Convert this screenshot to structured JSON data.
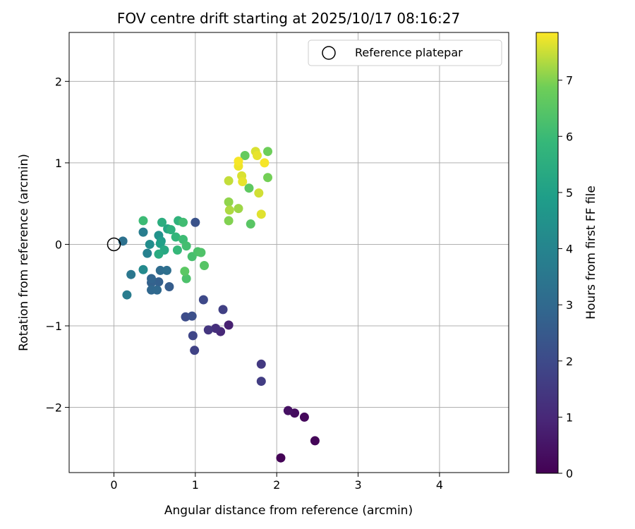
{
  "chart_data": {
    "type": "scatter",
    "title": "FOV centre drift starting at 2025/10/17 08:16:27",
    "xlabel": "Angular distance from reference (arcmin)",
    "ylabel": "Rotation from reference (arcmin)",
    "xlim": [
      -0.55,
      4.85
    ],
    "ylim": [
      -2.8,
      2.6
    ],
    "xticks": [
      0,
      1,
      2,
      3,
      4
    ],
    "xtick_labels": [
      "0",
      "1",
      "2",
      "3",
      "4"
    ],
    "yticks": [
      -2,
      -1,
      0,
      1,
      2
    ],
    "ytick_labels": [
      "−2",
      "−1",
      "0",
      "1",
      "2"
    ],
    "grid": true,
    "legend": {
      "position": "top-right",
      "entries": [
        "Reference platepar"
      ]
    },
    "reference_point": {
      "x": 0,
      "y": 0,
      "label": "Reference platepar"
    },
    "colorbar": {
      "label": "Hours from first FF file",
      "colormap": "viridis",
      "range": [
        0,
        7.85
      ],
      "ticks": [
        0,
        1,
        2,
        3,
        4,
        5,
        6,
        7
      ],
      "tick_labels": [
        "0",
        "1",
        "2",
        "3",
        "4",
        "5",
        "6",
        "7"
      ]
    },
    "points": [
      {
        "x": 2.05,
        "y": -2.62,
        "t": 0.05
      },
      {
        "x": 2.47,
        "y": -2.41,
        "t": 0.12
      },
      {
        "x": 2.34,
        "y": -2.12,
        "t": 0.2
      },
      {
        "x": 2.22,
        "y": -2.07,
        "t": 0.3
      },
      {
        "x": 2.14,
        "y": -2.04,
        "t": 0.4
      },
      {
        "x": 1.41,
        "y": -0.99,
        "t": 0.8
      },
      {
        "x": 1.31,
        "y": -1.07,
        "t": 1.0
      },
      {
        "x": 1.25,
        "y": -1.03,
        "t": 1.2
      },
      {
        "x": 1.16,
        "y": -1.05,
        "t": 1.4
      },
      {
        "x": 1.81,
        "y": -1.47,
        "t": 1.5
      },
      {
        "x": 1.81,
        "y": -1.68,
        "t": 1.6
      },
      {
        "x": 1.34,
        "y": -0.8,
        "t": 1.7
      },
      {
        "x": 0.99,
        "y": -1.3,
        "t": 1.75
      },
      {
        "x": 0.97,
        "y": -1.12,
        "t": 1.85
      },
      {
        "x": 1.1,
        "y": -0.68,
        "t": 1.95
      },
      {
        "x": 0.88,
        "y": -0.89,
        "t": 2.05
      },
      {
        "x": 0.96,
        "y": -0.88,
        "t": 2.15
      },
      {
        "x": 1.0,
        "y": 0.27,
        "t": 2.25
      },
      {
        "x": 0.68,
        "y": -0.52,
        "t": 2.6
      },
      {
        "x": 0.55,
        "y": -0.46,
        "t": 2.7
      },
      {
        "x": 0.46,
        "y": -0.47,
        "t": 2.75
      },
      {
        "x": 0.46,
        "y": -0.42,
        "t": 2.85
      },
      {
        "x": 0.46,
        "y": -0.56,
        "t": 2.95
      },
      {
        "x": 0.53,
        "y": -0.56,
        "t": 3.0
      },
      {
        "x": 0.57,
        "y": -0.32,
        "t": 3.1
      },
      {
        "x": 0.65,
        "y": -0.32,
        "t": 3.2
      },
      {
        "x": 0.11,
        "y": 0.04,
        "t": 3.3
      },
      {
        "x": 0.21,
        "y": -0.37,
        "t": 3.5
      },
      {
        "x": 0.16,
        "y": -0.62,
        "t": 3.7
      },
      {
        "x": 0.36,
        "y": 0.15,
        "t": 3.75
      },
      {
        "x": 0.41,
        "y": -0.11,
        "t": 3.9
      },
      {
        "x": 0.36,
        "y": -0.31,
        "t": 4.2
      },
      {
        "x": 0.44,
        "y": 0.0,
        "t": 4.3
      },
      {
        "x": 0.55,
        "y": 0.11,
        "t": 4.5
      },
      {
        "x": 0.58,
        "y": 0.04,
        "t": 4.8
      },
      {
        "x": 0.57,
        "y": 0.01,
        "t": 5.0
      },
      {
        "x": 0.66,
        "y": 0.19,
        "t": 5.2
      },
      {
        "x": 0.62,
        "y": -0.07,
        "t": 5.3
      },
      {
        "x": 0.55,
        "y": -0.12,
        "t": 5.4
      },
      {
        "x": 0.59,
        "y": 0.27,
        "t": 5.5
      },
      {
        "x": 0.7,
        "y": 0.18,
        "t": 5.6
      },
      {
        "x": 0.79,
        "y": 0.29,
        "t": 5.7
      },
      {
        "x": 0.76,
        "y": 0.09,
        "t": 5.8
      },
      {
        "x": 0.78,
        "y": -0.07,
        "t": 5.9
      },
      {
        "x": 0.36,
        "y": 0.29,
        "t": 6.0
      },
      {
        "x": 0.85,
        "y": 0.06,
        "t": 6.05
      },
      {
        "x": 0.85,
        "y": 0.27,
        "t": 6.1
      },
      {
        "x": 0.89,
        "y": -0.02,
        "t": 6.15
      },
      {
        "x": 0.96,
        "y": -0.15,
        "t": 6.2
      },
      {
        "x": 1.03,
        "y": -0.09,
        "t": 6.3
      },
      {
        "x": 1.07,
        "y": -0.1,
        "t": 6.35
      },
      {
        "x": 1.11,
        "y": -0.26,
        "t": 6.45
      },
      {
        "x": 0.89,
        "y": -0.42,
        "t": 6.3
      },
      {
        "x": 0.87,
        "y": -0.33,
        "t": 6.55
      },
      {
        "x": 1.68,
        "y": 0.25,
        "t": 6.5
      },
      {
        "x": 1.66,
        "y": 0.69,
        "t": 6.6
      },
      {
        "x": 1.61,
        "y": 1.09,
        "t": 6.7
      },
      {
        "x": 1.89,
        "y": 1.14,
        "t": 6.85
      },
      {
        "x": 1.89,
        "y": 0.82,
        "t": 6.9
      },
      {
        "x": 1.41,
        "y": 0.29,
        "t": 7.0
      },
      {
        "x": 1.41,
        "y": 0.52,
        "t": 7.1
      },
      {
        "x": 1.53,
        "y": 0.44,
        "t": 7.2
      },
      {
        "x": 1.42,
        "y": 0.42,
        "t": 7.3
      },
      {
        "x": 1.41,
        "y": 0.78,
        "t": 7.45
      },
      {
        "x": 1.78,
        "y": 0.63,
        "t": 7.55
      },
      {
        "x": 1.81,
        "y": 0.37,
        "t": 7.65
      },
      {
        "x": 1.57,
        "y": 0.84,
        "t": 7.6
      },
      {
        "x": 1.58,
        "y": 0.77,
        "t": 7.7
      },
      {
        "x": 1.53,
        "y": 0.96,
        "t": 7.75
      },
      {
        "x": 1.53,
        "y": 1.02,
        "t": 7.8
      },
      {
        "x": 1.74,
        "y": 1.14,
        "t": 7.6
      },
      {
        "x": 1.76,
        "y": 1.09,
        "t": 7.7
      },
      {
        "x": 1.85,
        "y": 1.0,
        "t": 7.8
      }
    ]
  }
}
